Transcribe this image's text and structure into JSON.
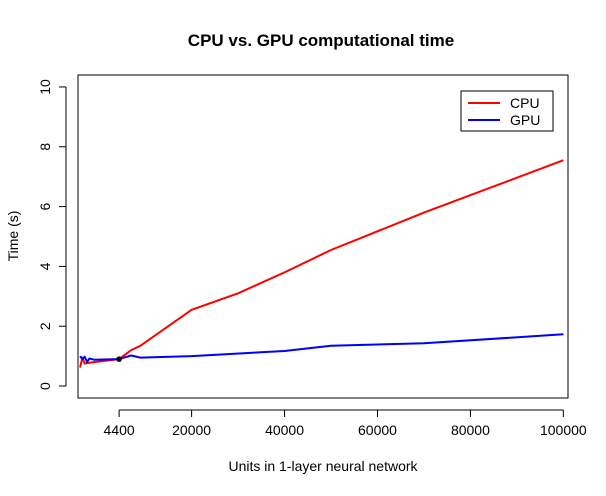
{
  "chart_data": {
    "type": "line",
    "title": "CPU vs. GPU computational time",
    "xlabel": "Units in 1-layer neural network",
    "ylabel": "Time (s)",
    "xlim": [
      -4450,
      101000
    ],
    "ylim": [
      -0.4,
      10.4
    ],
    "x_ticks": [
      {
        "value": 4400,
        "label": "4400"
      },
      {
        "value": 20000,
        "label": "20000"
      },
      {
        "value": 40000,
        "label": "40000"
      },
      {
        "value": 60000,
        "label": "60000"
      },
      {
        "value": 80000,
        "label": "80000"
      },
      {
        "value": 100000,
        "label": "100000"
      }
    ],
    "y_ticks": [
      {
        "value": 0,
        "label": "0"
      },
      {
        "value": 2,
        "label": "2"
      },
      {
        "value": 4,
        "label": "4"
      },
      {
        "value": 6,
        "label": "6"
      },
      {
        "value": 8,
        "label": "8"
      },
      {
        "value": 10,
        "label": "10"
      }
    ],
    "legend_position": "top-right",
    "series": [
      {
        "name": "CPU",
        "color": "#ff0000",
        "x": [
          -4000,
          -3500,
          -3000,
          -2000,
          -1000,
          4400,
          7000,
          9000,
          20000,
          30000,
          40000,
          50000,
          70000,
          100000
        ],
        "y": [
          0.62,
          0.95,
          0.75,
          0.78,
          0.8,
          0.9,
          1.2,
          1.35,
          2.55,
          3.1,
          3.8,
          4.55,
          5.8,
          7.55
        ]
      },
      {
        "name": "GPU",
        "color": "#0000ff",
        "x": [
          -4000,
          -3500,
          -3000,
          -2500,
          -2000,
          -1000,
          4400,
          7000,
          9000,
          20000,
          40000,
          50000,
          70000,
          100000
        ],
        "y": [
          1.0,
          0.9,
          0.98,
          0.8,
          0.92,
          0.88,
          0.9,
          1.02,
          0.95,
          1.0,
          1.17,
          1.35,
          1.43,
          1.73
        ]
      }
    ],
    "highlight_point": {
      "x": 4400,
      "y": 0.9
    }
  }
}
